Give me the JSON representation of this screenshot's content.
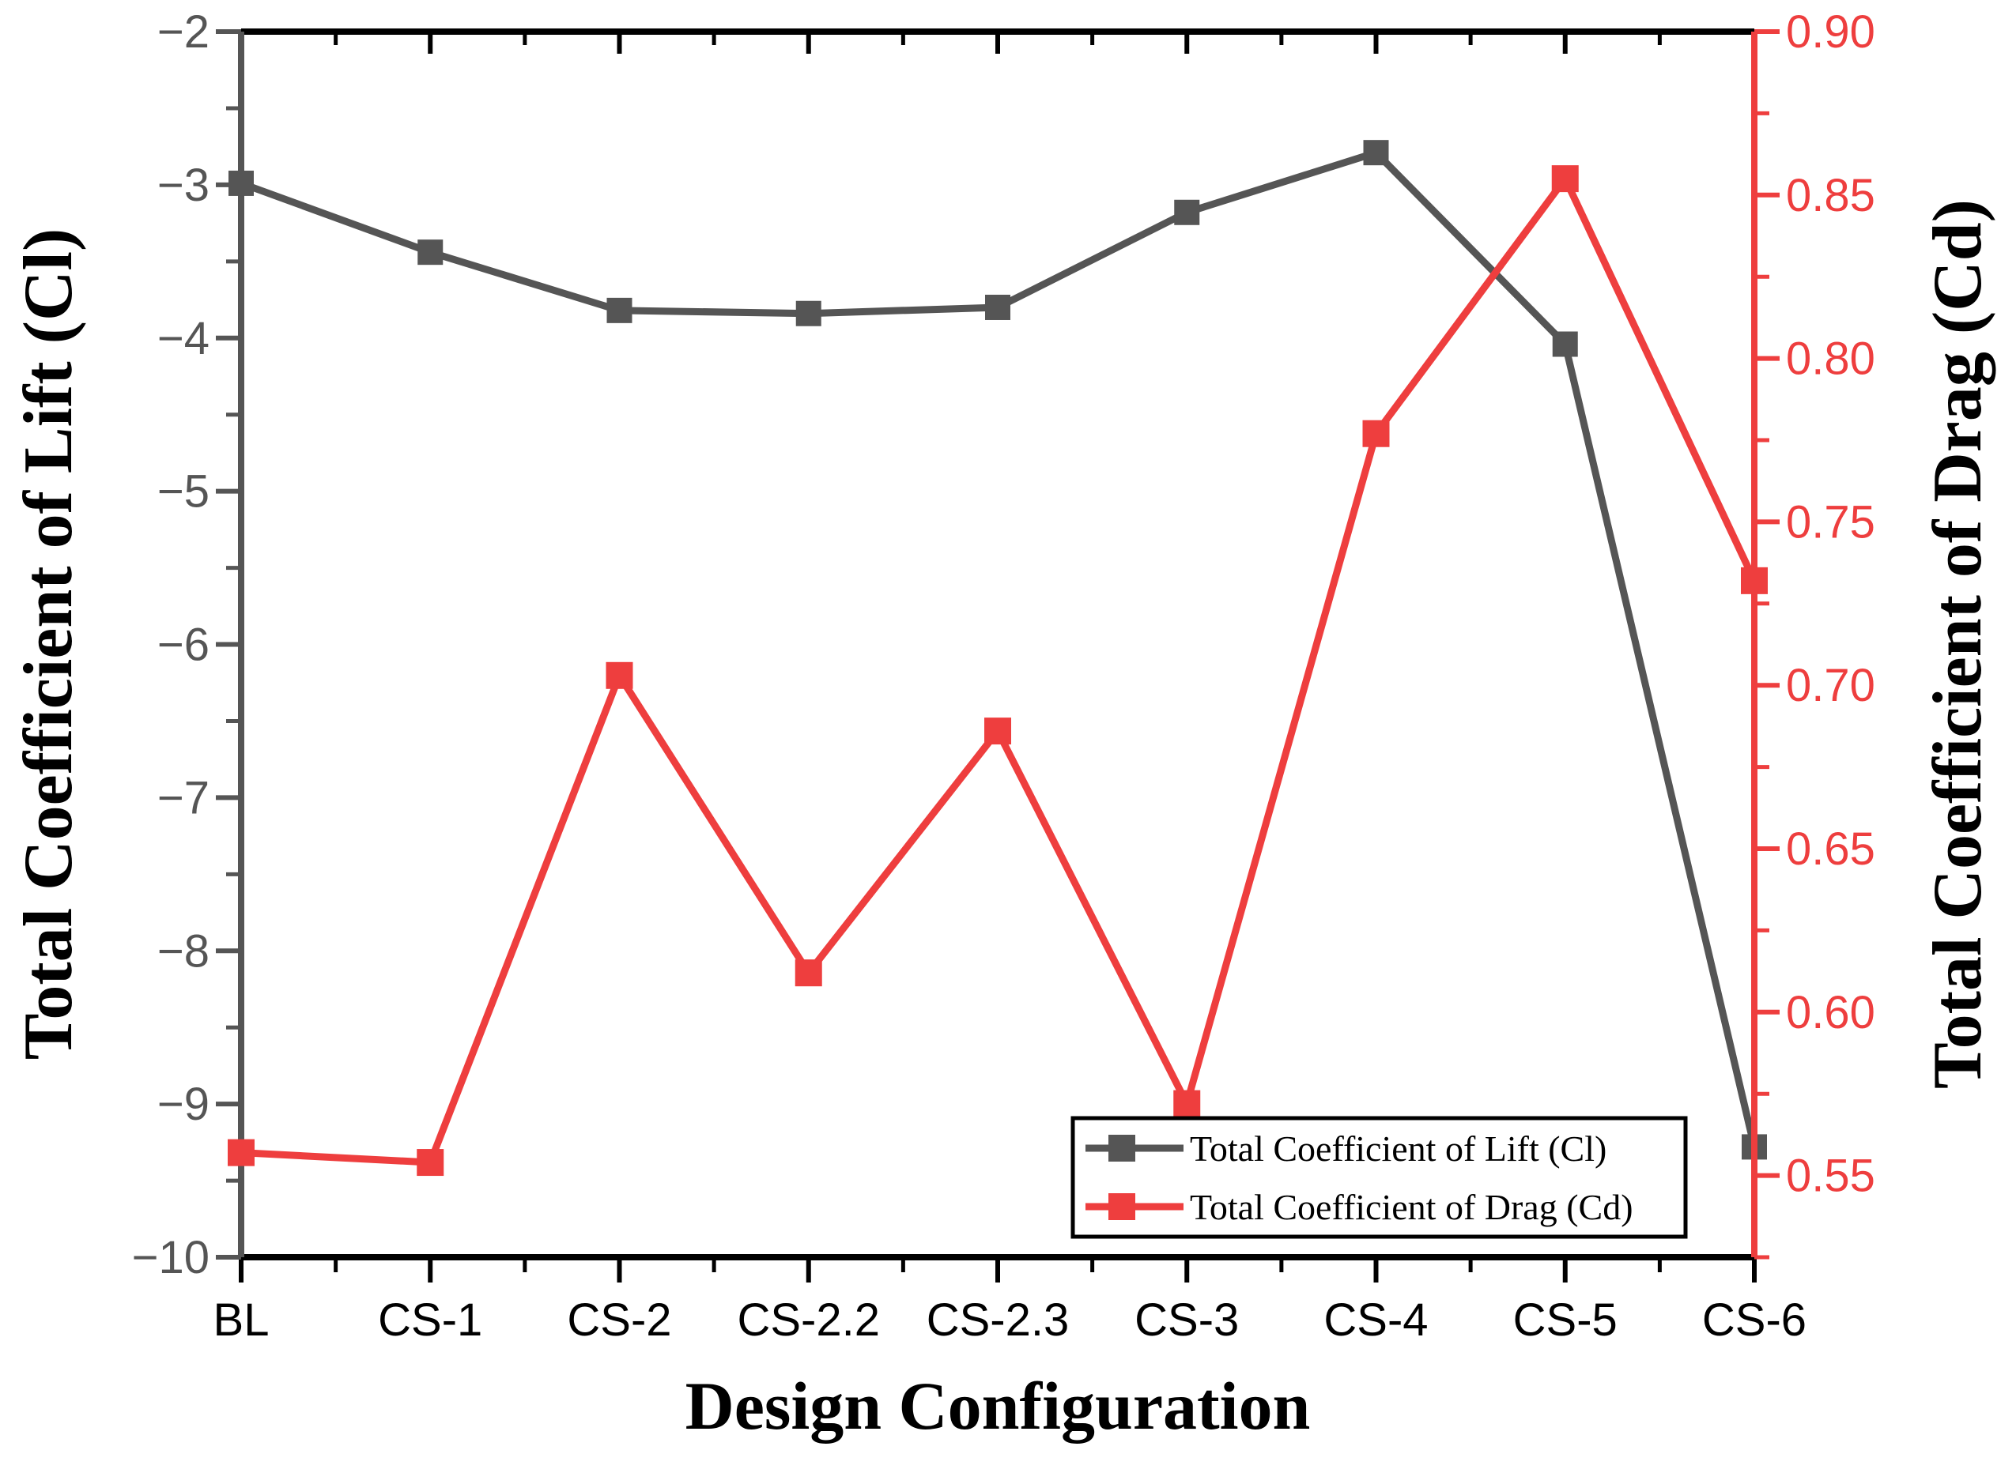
{
  "chart_data": {
    "type": "line",
    "title": "",
    "xlabel": "Design Configuration",
    "ylabel_left": "Total Coefficient of Lift (Cl)",
    "ylabel_right": "Total Coefficient of Drag (Cd)",
    "categories": [
      "BL",
      "CS-1",
      "CS-2",
      "CS-2.2",
      "CS-2.3",
      "CS-3",
      "CS-4",
      "CS-5",
      "CS-6"
    ],
    "series": [
      {
        "name": "Total Coefficient of Lift (Cl)",
        "axis": "left",
        "color": "#555555",
        "marker": "square",
        "values": [
          -2.99,
          -3.44,
          -3.82,
          -3.84,
          -3.8,
          -3.18,
          -2.79,
          -4.04,
          -9.28
        ]
      },
      {
        "name": "Total Coefficient of Drag (Cd)",
        "axis": "right",
        "color": "#EE3E3E",
        "marker": "square",
        "values": [
          0.557,
          0.554,
          0.703,
          0.612,
          0.686,
          0.572,
          0.777,
          0.855,
          0.732
        ]
      }
    ],
    "left_axis": {
      "min": -10,
      "max": -2,
      "color": "#555555",
      "tick_values": [
        -2,
        -3,
        -4,
        -5,
        -6,
        -7,
        -8,
        -9,
        -10
      ],
      "tick_labels": [
        "−2",
        "−3",
        "−4",
        "−5",
        "−6",
        "−7",
        "−8",
        "−9",
        "−10"
      ],
      "minor_tick_values": [
        -2.5,
        -3.5,
        -4.5,
        -5.5,
        -6.5,
        -7.5,
        -8.5,
        -9.5
      ]
    },
    "right_axis": {
      "min": 0.525,
      "max": 0.9,
      "color": "#EE3E3E",
      "tick_values": [
        0.9,
        0.85,
        0.8,
        0.75,
        0.7,
        0.65,
        0.6,
        0.55
      ],
      "tick_labels": [
        "0.90",
        "0.85",
        "0.80",
        "0.75",
        "0.70",
        "0.65",
        "0.60",
        "0.55"
      ],
      "minor_tick_values": [
        0.875,
        0.825,
        0.775,
        0.725,
        0.675,
        0.625,
        0.575,
        0.525
      ]
    },
    "x_axis": {
      "color": "#000000"
    },
    "grid": false,
    "legend_position": "inside-bottom-right"
  },
  "legend": {
    "background": "#FFFFFF",
    "border_color": "#000000",
    "entries": [
      {
        "label": "Total Coefficient of Lift (Cl)",
        "color": "#555555",
        "marker": "square"
      },
      {
        "label": "Total Coefficient of Drag (Cd)",
        "color": "#EE3E3E",
        "marker": "square"
      }
    ]
  }
}
